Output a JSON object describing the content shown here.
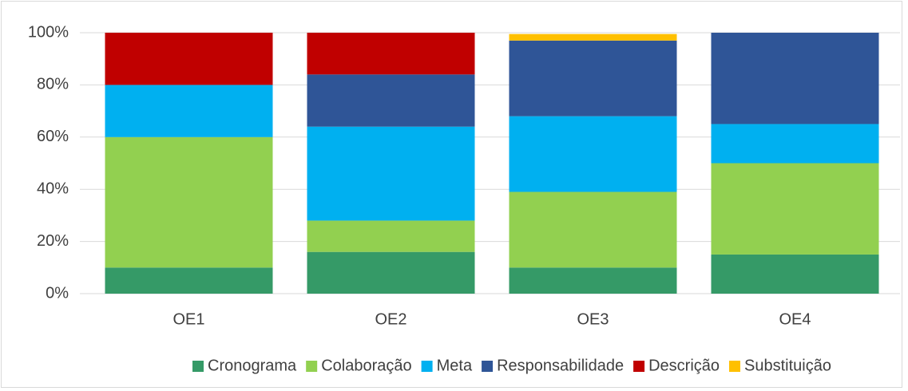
{
  "chart_data": {
    "type": "stacked_bar_100",
    "categories": [
      "OE1",
      "OE2",
      "OE3",
      "OE4"
    ],
    "series": [
      {
        "name": "Cronograma",
        "color": "#359a67",
        "values": [
          10,
          16,
          10,
          15
        ]
      },
      {
        "name": "Colaboração",
        "color": "#92d050",
        "values": [
          50,
          12,
          29,
          35
        ]
      },
      {
        "name": "Meta",
        "color": "#00b0f0",
        "values": [
          20,
          36,
          29,
          15
        ]
      },
      {
        "name": "Responsabilidade",
        "color": "#2f5597",
        "values": [
          0,
          20,
          29,
          35
        ]
      },
      {
        "name": "Descrição",
        "color": "#c00000",
        "values": [
          20,
          16,
          0,
          0
        ]
      },
      {
        "name": "Substituição",
        "color": "#ffc000",
        "values": [
          0,
          0,
          2.5,
          0
        ]
      }
    ],
    "ylim": [
      0,
      100
    ],
    "yticks": [
      {
        "value": 0,
        "label": "0%"
      },
      {
        "value": 20,
        "label": "20%"
      },
      {
        "value": 40,
        "label": "40%"
      },
      {
        "value": 60,
        "label": "60%"
      },
      {
        "value": 80,
        "label": "80%"
      },
      {
        "value": 100,
        "label": "100%"
      }
    ],
    "grid": true,
    "legend": "bottom"
  }
}
